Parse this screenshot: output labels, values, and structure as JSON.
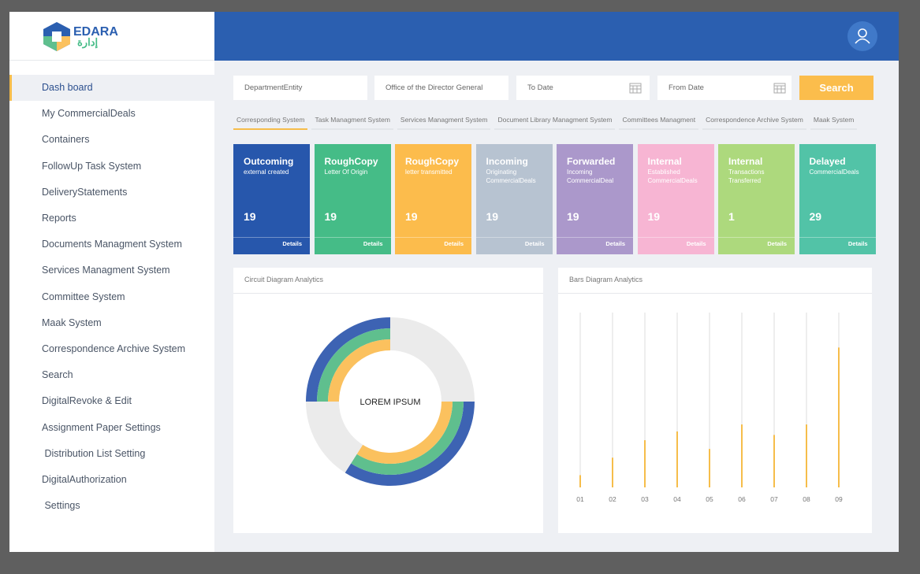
{
  "logo": {
    "name": "EDARA",
    "arabic": "إدارة"
  },
  "menu": {
    "active": 0,
    "items": [
      "Dash board",
      "My CommercialDeals",
      "Containers",
      "FollowUp Task System",
      "DeliveryStatements",
      "Reports",
      "Documents Managment System",
      "Services Managment System",
      "Committee System",
      "Maak System",
      "Correspondence Archive System",
      "Search",
      "DigitalRevoke & Edit",
      "Assignment Paper Settings",
      " Distribution List Setting",
      "DigitalAuthorization",
      " Settings"
    ]
  },
  "filters": {
    "fields": [
      "DepartmentEntity",
      "Office of the Director General",
      "To Date",
      "From Date"
    ],
    "button": "Search"
  },
  "tabs": {
    "active": 0,
    "items": [
      "Corresponding System",
      "Task Managment System",
      "Services Managment System",
      "Document Library Managment System",
      "Committees Managment",
      "Correspondence Archive System",
      "Maak System"
    ]
  },
  "cards": [
    {
      "title": "Outcoming",
      "subtitle": [
        "external created"
      ],
      "value": "19",
      "link": "Details",
      "color": "#2757ac"
    },
    {
      "title": "RoughCopy",
      "subtitle": [
        "Letter Of Origin"
      ],
      "value": "19",
      "link": "Details",
      "color": "#45bc87"
    },
    {
      "title": "RoughCopy",
      "subtitle": [
        "letter transmitted"
      ],
      "value": "19",
      "link": "Details",
      "color": "#fcbc4c"
    },
    {
      "title": "Incoming",
      "subtitle": [
        "Originating",
        "CommercialDeals"
      ],
      "value": "19",
      "link": "Details",
      "color": "#b7c3d1"
    },
    {
      "title": "Forwarded",
      "subtitle": [
        "Incoming",
        "CommercialDeal"
      ],
      "value": "19",
      "link": "Details",
      "color": "#ab98cb"
    },
    {
      "title": "Internal",
      "subtitle": [
        "Established",
        "CommercialDeals"
      ],
      "value": "19",
      "link": "Details",
      "color": "#f7b5d3"
    },
    {
      "title": "Internal",
      "subtitle": [
        "Transactions",
        "Transferred"
      ],
      "value": "1",
      "link": "Details",
      "color": "#add97d"
    },
    {
      "title": "Delayed",
      "subtitle": [
        "CommercialDeals"
      ],
      "value": "29",
      "link": "Details",
      "color": "#52c3a7"
    }
  ],
  "chart_data": [
    {
      "type": "donut",
      "title": "Circuit Diagram Analytics",
      "center_label": "LOREM IPSUM",
      "values": [
        25,
        34,
        16,
        25
      ],
      "highlighted": [
        false,
        true,
        false,
        true
      ],
      "base_color": "#ebebeb",
      "ring_colors": [
        "#3d63b3",
        "#5fbf8e",
        "#fbc15e"
      ]
    },
    {
      "type": "bar",
      "title": "Bars Diagram Analytics",
      "categories": [
        "01",
        "02",
        "03",
        "04",
        "05",
        "06",
        "07",
        "08",
        "09"
      ],
      "values": [
        7,
        17,
        27,
        32,
        22,
        36,
        30,
        36,
        80
      ],
      "ylim": [
        0,
        100
      ],
      "color": "#f6bd4a",
      "track_color": "#dddddd"
    }
  ]
}
